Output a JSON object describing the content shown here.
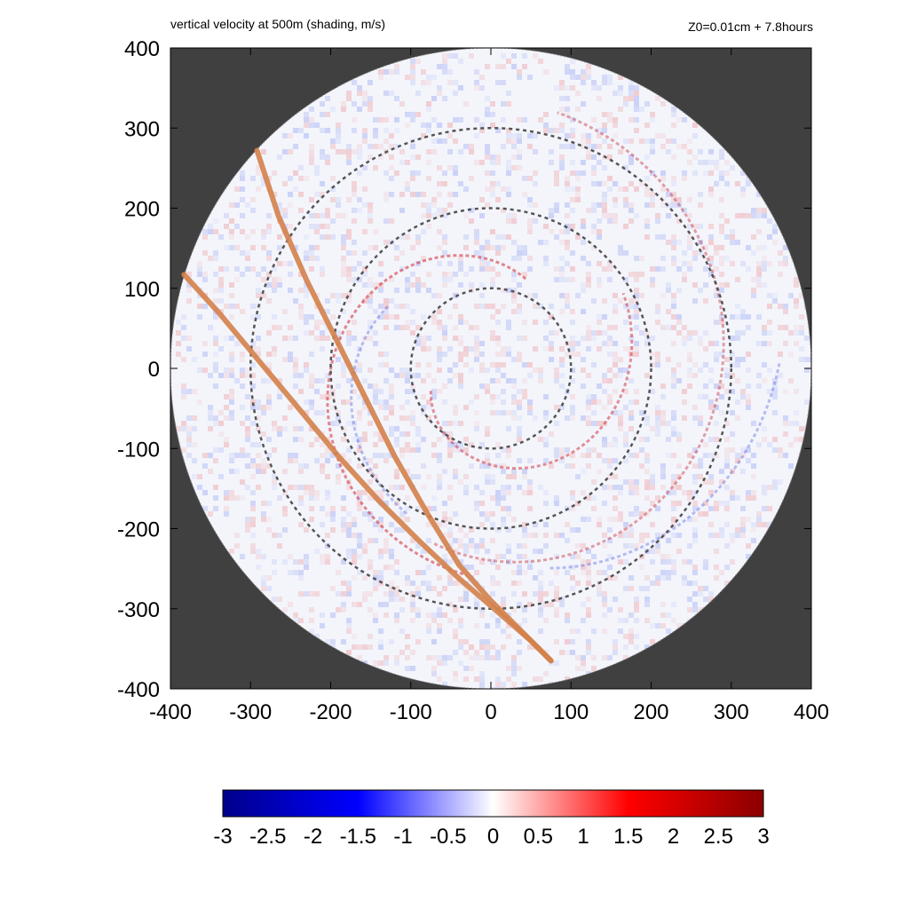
{
  "header": {
    "title": "vertical velocity at 500m (shading, m/s)",
    "run_info": "Z0=0.01cm  + 7.8hours"
  },
  "chart_data": {
    "type": "heatmap",
    "title": "vertical velocity at 500m (shading, m/s)",
    "xlabel": "",
    "ylabel": "",
    "xlim": [
      -400,
      400
    ],
    "ylim": [
      -400,
      400
    ],
    "x_ticks": [
      "-400",
      "-300",
      "-200",
      "-100",
      "0",
      "100",
      "200",
      "300",
      "400"
    ],
    "y_ticks": [
      "400",
      "300",
      "200",
      "100",
      "0",
      "-100",
      "-200",
      "-300",
      "-400"
    ],
    "domain_radius": 400,
    "background_color": "#404040",
    "dashed_circle_radii": [
      100,
      200,
      300
    ],
    "track_color": "#d4814a",
    "tracks": [
      {
        "points": [
          [
            -292,
            272
          ],
          [
            -265,
            190
          ],
          [
            -230,
            110
          ],
          [
            -195,
            40
          ],
          [
            -160,
            -30
          ],
          [
            -120,
            -110
          ],
          [
            -80,
            -180
          ],
          [
            -40,
            -245
          ],
          [
            0,
            -290
          ],
          [
            40,
            -330
          ],
          [
            75,
            -365
          ]
        ]
      },
      {
        "points": [
          [
            -383,
            117
          ],
          [
            -340,
            70
          ],
          [
            -290,
            10
          ],
          [
            -240,
            -50
          ],
          [
            -190,
            -110
          ],
          [
            -140,
            -165
          ],
          [
            -90,
            -215
          ],
          [
            -40,
            -262
          ],
          [
            10,
            -305
          ],
          [
            50,
            -340
          ],
          [
            75,
            -365
          ]
        ]
      }
    ],
    "colorbar": {
      "min": -3,
      "max": 3,
      "labels": [
        "-3",
        "-2.5",
        "-2",
        "-1.5",
        "-1",
        "-0.5",
        "0",
        "0.5",
        "1",
        "1.5",
        "2",
        "2.5",
        "3"
      ],
      "colors": [
        "#00008b",
        "#0000ff",
        "#ffffff",
        "#ff0000",
        "#8b0000"
      ]
    }
  }
}
